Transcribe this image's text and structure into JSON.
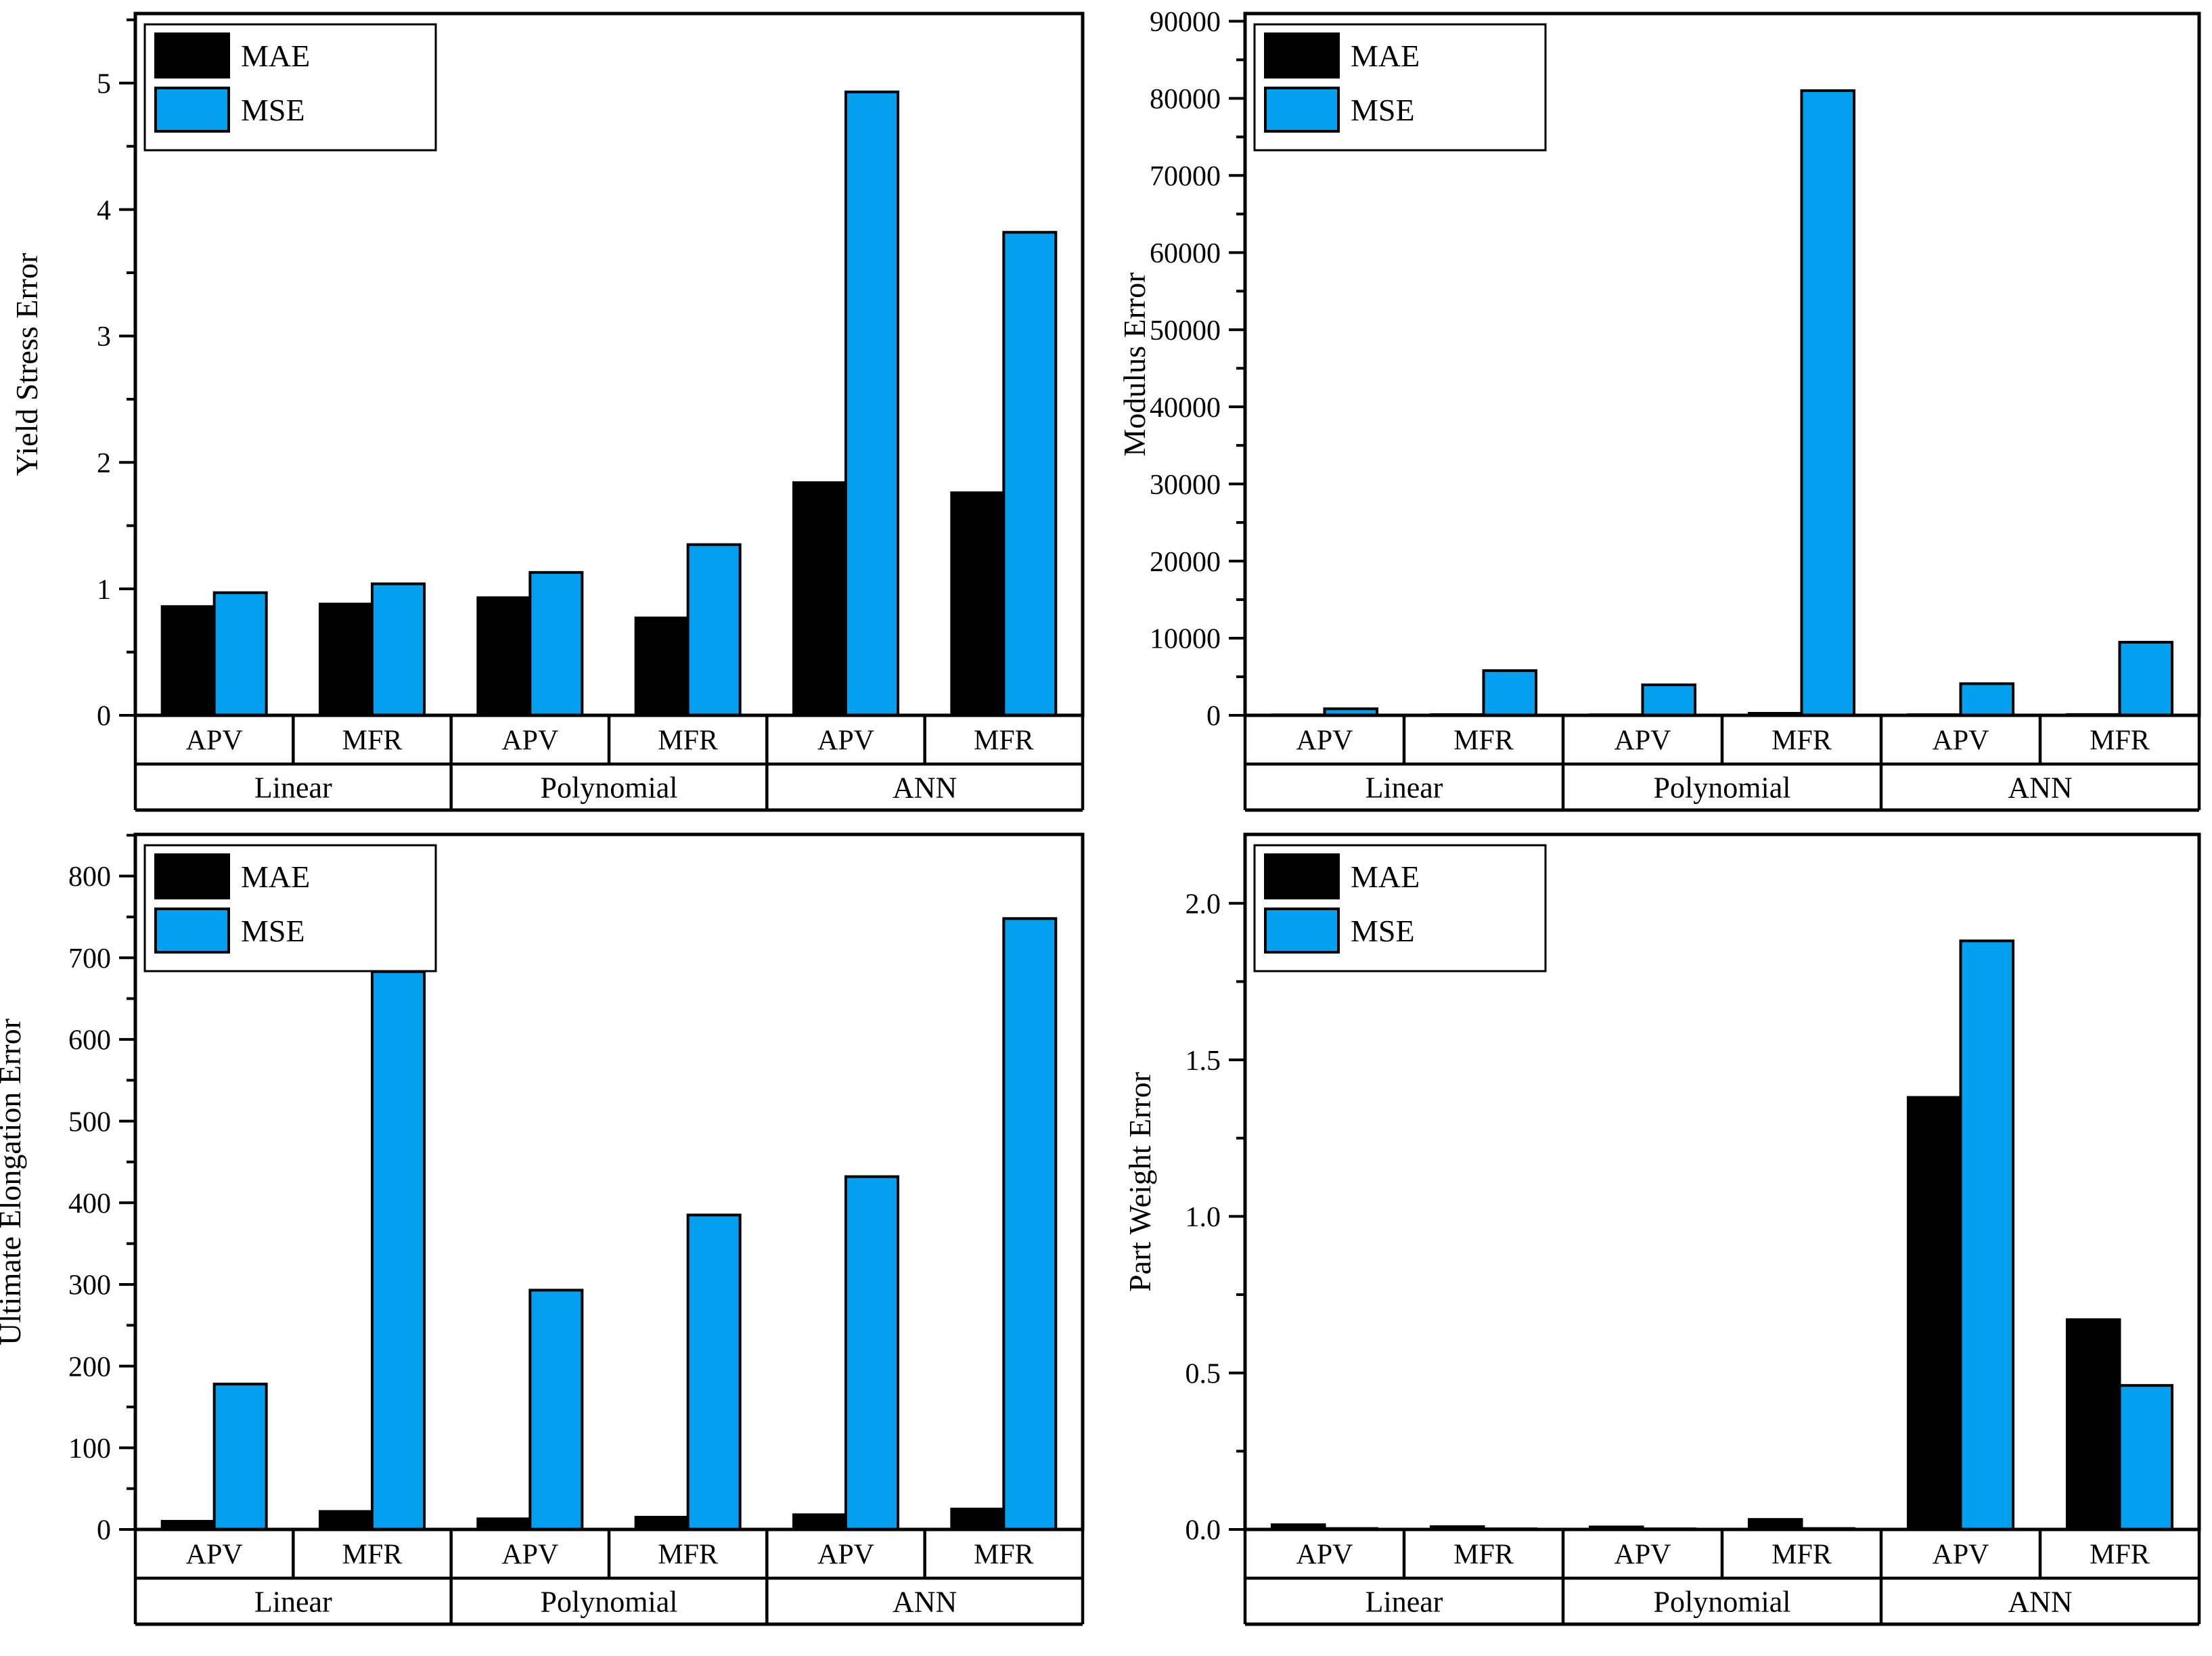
{
  "figure": {
    "background": "#ffffff",
    "legend_labels": [
      "MAE",
      "MSE"
    ],
    "groups": [
      "Linear",
      "Polynomial",
      "ANN"
    ],
    "subgroups": [
      "APV",
      "MFR"
    ],
    "series_colors": {
      "MAE": "#000000",
      "MSE": "#04A0F0"
    }
  },
  "chart_data": [
    {
      "id": "yield-stress",
      "type": "bar",
      "title": "",
      "ylabel": "Yield Stress Error",
      "xlabel": "",
      "ylim": [
        0,
        5.55
      ],
      "ytick_major": 1,
      "ytick_minor": 0.5,
      "ytick_decimals": 0,
      "grid": false,
      "legend_position": "top-left",
      "legend": [
        "MAE",
        "MSE"
      ],
      "group_labels": [
        "Linear",
        "Polynomial",
        "ANN"
      ],
      "categories": [
        "Linear APV",
        "Linear MFR",
        "Polynomial APV",
        "Polynomial MFR",
        "ANN APV",
        "ANN MFR"
      ],
      "subgroup_labels": [
        "APV",
        "MFR",
        "APV",
        "MFR",
        "APV",
        "MFR"
      ],
      "series": [
        {
          "name": "MAE",
          "color": "#000000",
          "values": [
            0.86,
            0.88,
            0.93,
            0.77,
            1.84,
            1.76
          ]
        },
        {
          "name": "MSE",
          "color": "#04A0F0",
          "values": [
            0.97,
            1.04,
            1.13,
            1.35,
            4.93,
            3.82
          ]
        }
      ]
    },
    {
      "id": "modulus",
      "type": "bar",
      "title": "",
      "ylabel": "Modulus Error",
      "xlabel": "",
      "ylim": [
        0,
        91000
      ],
      "ytick_major": 10000,
      "ytick_minor": 5000,
      "ytick_decimals": 0,
      "grid": false,
      "legend_position": "top-left",
      "legend": [
        "MAE",
        "MSE"
      ],
      "group_labels": [
        "Linear",
        "Polynomial",
        "ANN"
      ],
      "categories": [
        "Linear APV",
        "Linear MFR",
        "Polynomial APV",
        "Polynomial MFR",
        "ANN APV",
        "ANN MFR"
      ],
      "subgroup_labels": [
        "APV",
        "MFR",
        "APV",
        "MFR",
        "APV",
        "MFR"
      ],
      "series": [
        {
          "name": "MAE",
          "color": "#000000",
          "values": [
            60,
            90,
            70,
            260,
            80,
            100
          ]
        },
        {
          "name": "MSE",
          "color": "#04A0F0",
          "values": [
            850,
            5800,
            3950,
            81000,
            4100,
            9480
          ]
        }
      ]
    },
    {
      "id": "ultimate-elongation",
      "type": "bar",
      "title": "",
      "ylabel": "Ultimate Elongation Error",
      "xlabel": "",
      "ylim": [
        0,
        851
      ],
      "ytick_major": 100,
      "ytick_minor": 50,
      "ytick_decimals": 0,
      "grid": false,
      "legend_position": "top-left",
      "legend": [
        "MAE",
        "MSE"
      ],
      "group_labels": [
        "Linear",
        "Polynomial",
        "ANN"
      ],
      "categories": [
        "Linear APV",
        "Linear MFR",
        "Polynomial APV",
        "Polynomial MFR",
        "ANN APV",
        "ANN MFR"
      ],
      "subgroup_labels": [
        "APV",
        "MFR",
        "APV",
        "MFR",
        "APV",
        "MFR"
      ],
      "series": [
        {
          "name": "MAE",
          "color": "#000000",
          "values": [
            10,
            22,
            13,
            15,
            18,
            25
          ]
        },
        {
          "name": "MSE",
          "color": "#04A0F0",
          "values": [
            178,
            683,
            293,
            385,
            432,
            748
          ]
        }
      ]
    },
    {
      "id": "part-weight",
      "type": "bar",
      "title": "",
      "ylabel": "Part Weight Error",
      "xlabel": "",
      "ylim": [
        0,
        2.22
      ],
      "ytick_major": 0.5,
      "ytick_minor": 0.25,
      "ytick_decimals": 1,
      "grid": false,
      "legend_position": "top-left",
      "legend": [
        "MAE",
        "MSE"
      ],
      "group_labels": [
        "Linear",
        "Polynomial",
        "ANN"
      ],
      "categories": [
        "Linear APV",
        "Linear MFR",
        "Polynomial APV",
        "Polynomial MFR",
        "ANN APV",
        "ANN MFR"
      ],
      "subgroup_labels": [
        "APV",
        "MFR",
        "APV",
        "MFR",
        "APV",
        "MFR"
      ],
      "series": [
        {
          "name": "MAE",
          "color": "#000000",
          "values": [
            0.015,
            0.009,
            0.008,
            0.032,
            1.38,
            0.67
          ]
        },
        {
          "name": "MSE",
          "color": "#04A0F0",
          "values": [
            0.003,
            0.002,
            0.002,
            0.003,
            1.88,
            0.46
          ]
        }
      ]
    }
  ]
}
